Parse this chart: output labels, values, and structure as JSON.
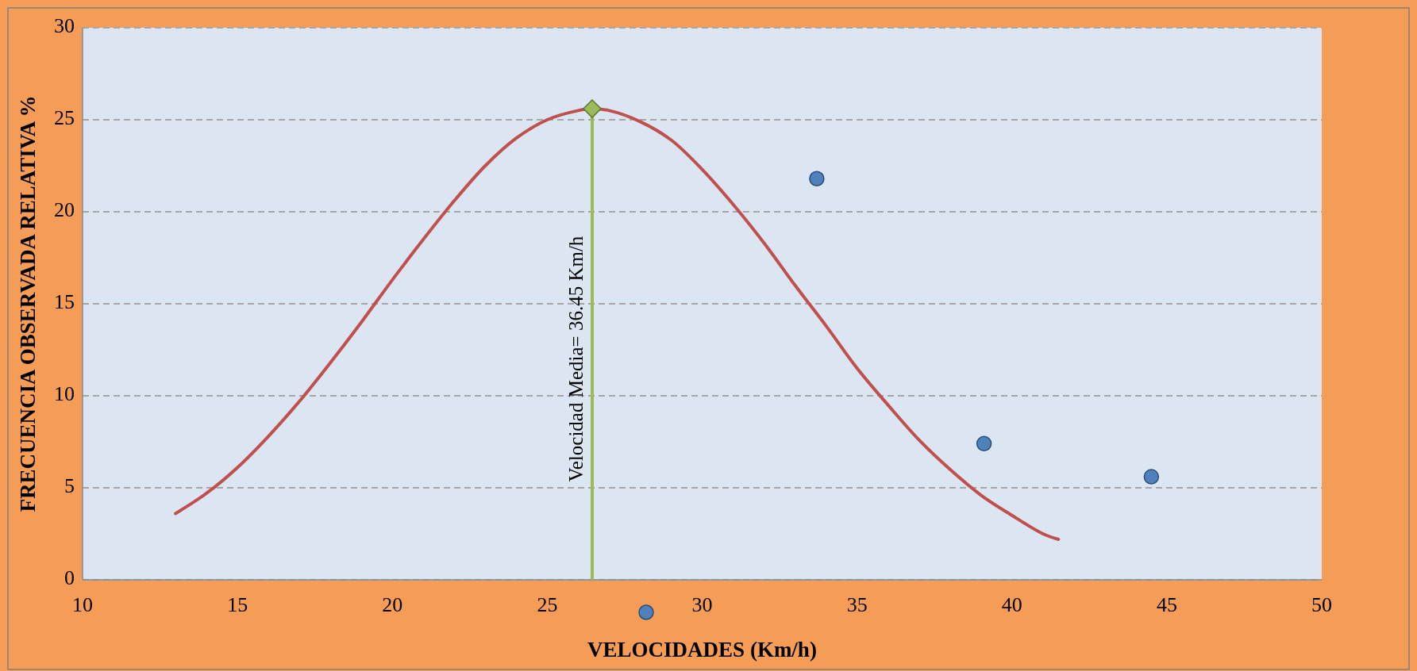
{
  "chart_data": {
    "type": "scatter",
    "xlabel": "VELOCIDADES (Km/h)",
    "ylabel": "FRECUENCIA OBSERVADA RELATIVA %",
    "xlim": [
      10,
      50
    ],
    "ylim": [
      0,
      30
    ],
    "xticks": [
      10,
      15,
      20,
      25,
      30,
      35,
      40,
      45,
      50
    ],
    "yticks": [
      0,
      5,
      10,
      15,
      20,
      25,
      30
    ],
    "grid": "y",
    "series": [
      {
        "type": "line",
        "color": "#c0504d",
        "marker": "none",
        "x": [
          13,
          14,
          15,
          16,
          17,
          18,
          19,
          20,
          21,
          22,
          23,
          24,
          25,
          26,
          26.45,
          27,
          28,
          29,
          30,
          31,
          32,
          33,
          34,
          35,
          36,
          37,
          38,
          39,
          40,
          41,
          41.5
        ],
        "values": [
          3.6,
          4.7,
          6.1,
          7.8,
          9.7,
          11.8,
          14.0,
          16.3,
          18.5,
          20.6,
          22.5,
          24.0,
          25.0,
          25.5,
          25.6,
          25.5,
          24.9,
          23.9,
          22.3,
          20.4,
          18.3,
          16.0,
          13.8,
          11.5,
          9.5,
          7.6,
          6.0,
          4.6,
          3.5,
          2.5,
          2.2
        ]
      },
      {
        "type": "lollipop",
        "color": "#9bbb59",
        "marker": "diamond",
        "x": [
          26.45
        ],
        "values": [
          25.6
        ]
      },
      {
        "color": "#4f81bd",
        "marker": "circle",
        "x": [
          33.7,
          39.1,
          44.5
        ],
        "values": [
          21.8,
          7.4,
          5.6
        ]
      }
    ],
    "annotations": [
      "Velocidad Media= 36.45 Km/h"
    ]
  }
}
